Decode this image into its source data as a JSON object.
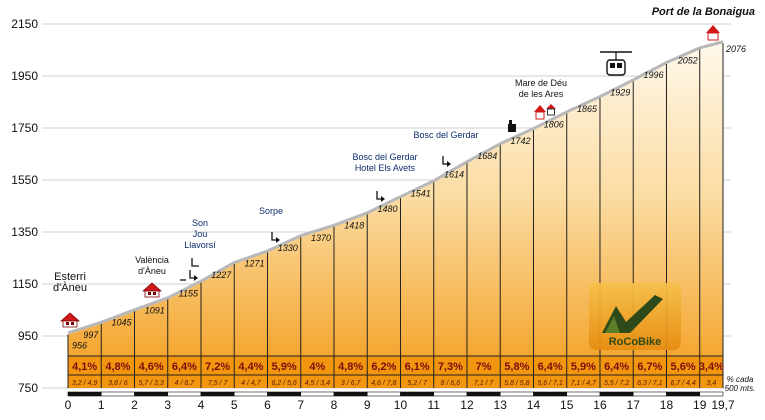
{
  "chart_data": {
    "type": "area",
    "title": "Port de la Bonaigua",
    "xlabel": "",
    "ylabel": "",
    "x_ticks": [
      "0",
      "1",
      "2",
      "3",
      "4",
      "5",
      "6",
      "7",
      "8",
      "9",
      "10",
      "11",
      "12",
      "13",
      "14",
      "15",
      "16",
      "17",
      "18",
      "19",
      "19,7"
    ],
    "y_ticks": [
      "750",
      "950",
      "1150",
      "1350",
      "1550",
      "1750",
      "1950",
      "2150"
    ],
    "xlim": [
      0,
      19.7
    ],
    "ylim": [
      750,
      2150
    ],
    "x": [
      0,
      1,
      2,
      3,
      4,
      5,
      6,
      7,
      8,
      9,
      10,
      11,
      12,
      13,
      14,
      15,
      16,
      17,
      18,
      19,
      19.7
    ],
    "altitudes": [
      956,
      997,
      1045,
      1091,
      1155,
      1227,
      1271,
      1330,
      1370,
      1418,
      1480,
      1541,
      1614,
      1684,
      1742,
      1806,
      1865,
      1929,
      1996,
      2052,
      2076
    ],
    "altitude_labels": [
      "956",
      "997",
      "1045",
      "1091",
      "1155",
      "1227",
      "1271",
      "1330",
      "1370",
      "1418",
      "1480",
      "1541",
      "1614",
      "1684",
      "1742",
      "1806",
      "1865",
      "1929",
      "1996",
      "2052",
      "2076"
    ],
    "segment_pct": [
      "4,1%",
      "4,8%",
      "4,6%",
      "6,4%",
      "7,2%",
      "4,4%",
      "5,9%",
      "4%",
      "4,8%",
      "6,2%",
      "6,1%",
      "7,3%",
      "7%",
      "5,8%",
      "6,4%",
      "5,9%",
      "6,4%",
      "6,7%",
      "5,6%",
      "3,4%"
    ],
    "segment_detail": [
      "3,2 / 4,9",
      "3,8 / 6",
      "5,7 / 3,3",
      "4 / 8,7",
      "7,5 / 7",
      "4 / 4,7",
      "6,2 / 5,6",
      "4,5 / 3,4",
      "3 / 6,7",
      "4,6 / 7,8",
      "5,2 / 7",
      "8 / 6,6",
      "7,1 / 7",
      "5,8 / 5,8",
      "5,6 / 7,1",
      "7,1 / 4,7",
      "5,5 / 7,2",
      "6,3 / 7,1",
      "6,7 / 4,4",
      "3,4"
    ],
    "legend_note": [
      "% cada",
      "500 mts."
    ],
    "annotations": [
      {
        "lines": [
          "Esterri",
          "d'Àneu"
        ],
        "km": 0.1
      },
      {
        "lines": [
          "València",
          "d'Àneu"
        ],
        "km": 2.6
      },
      {
        "lines": [
          "Son",
          "Jou",
          "Llavorsí"
        ],
        "km": 3.9
      },
      {
        "lines": [
          "Sorpe"
        ],
        "km": 6.1
      },
      {
        "lines": [
          "Bosc del Gerdar",
          "Hotel Els Avets"
        ],
        "km": 9.4
      },
      {
        "lines": [
          "Bosc del Gerdar"
        ],
        "km": 11.3
      },
      {
        "lines": [
          "Mare de Déu",
          "de les Ares"
        ],
        "km": 14.0
      }
    ],
    "logo_text": "RoCoBike",
    "colors": {
      "fill_top": "#fdf3dc",
      "fill_bottom": "#f39c1a",
      "table": "#f2960f",
      "pct_text": "#7a0d0d",
      "label_blue": "#0d2d6b"
    }
  }
}
